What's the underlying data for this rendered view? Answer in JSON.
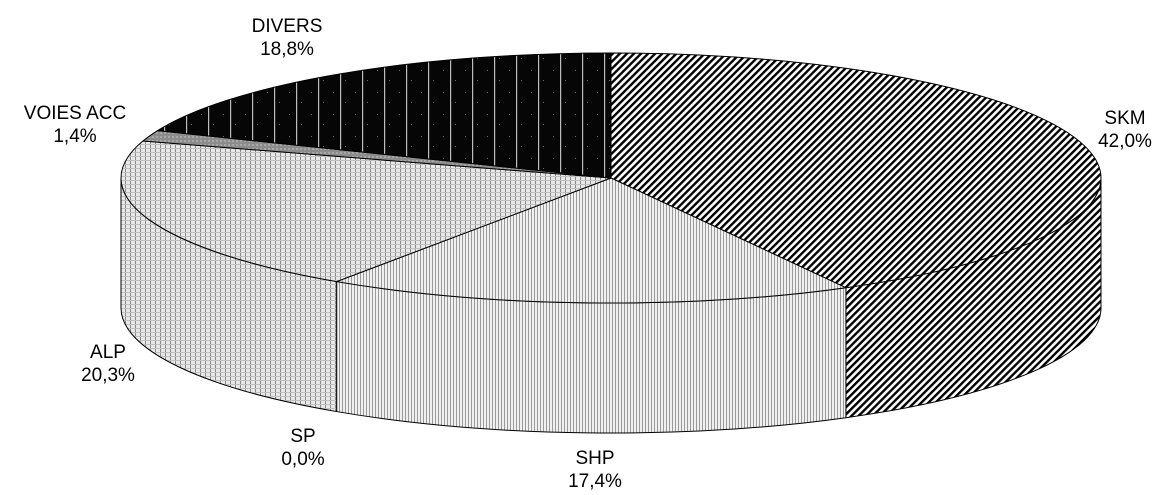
{
  "chart_data": {
    "type": "pie",
    "style": "3d",
    "slices": [
      {
        "label": "SKM",
        "value_text": "42,0%",
        "value": 42.0,
        "pattern": "diagonal-hatch",
        "color": "#000000"
      },
      {
        "label": "SHP",
        "value_text": "17,4%",
        "value": 17.4,
        "pattern": "fine-vertical",
        "color": "#d9d9d9"
      },
      {
        "label": "SP",
        "value_text": "0,0%",
        "value": 0.0,
        "pattern": "none",
        "color": "#ffffff"
      },
      {
        "label": "ALP",
        "value_text": "20,3%",
        "value": 20.3,
        "pattern": "vertical-grid",
        "color": "#c8c8c8"
      },
      {
        "label": "VOIES ACC",
        "value_text": "1,4%",
        "value": 1.4,
        "pattern": "solid",
        "color": "#999999"
      },
      {
        "label": "DIVERS",
        "value_text": "18,8%",
        "value": 18.8,
        "pattern": "vertical-lines-dark",
        "color": "#000000"
      }
    ]
  }
}
